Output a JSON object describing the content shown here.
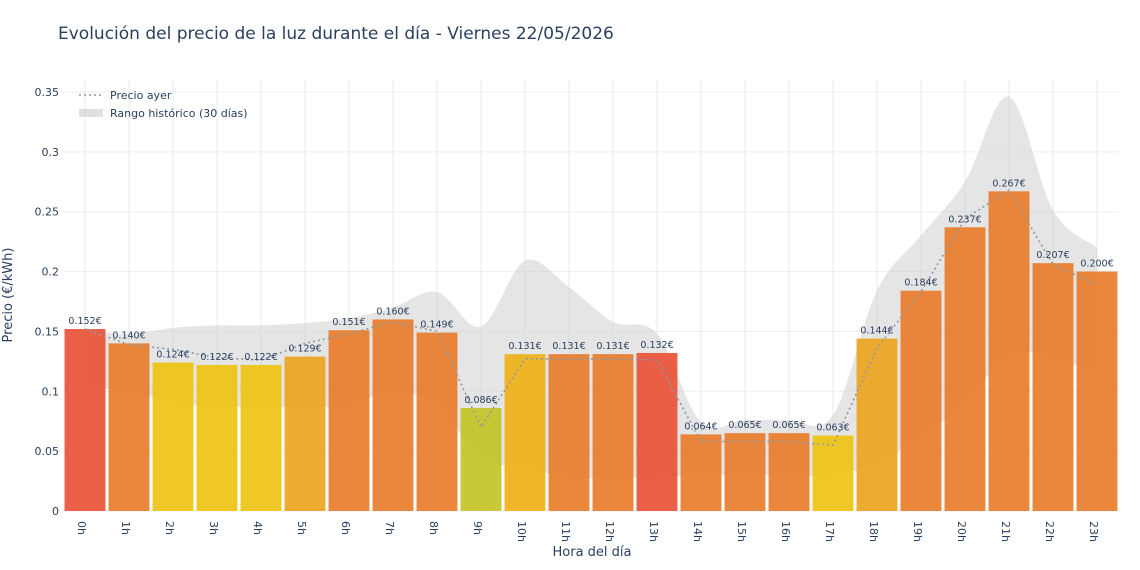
{
  "chart_data": {
    "type": "bar",
    "title": "Evolución del precio de la luz durante el día - Viernes 22/05/2026",
    "xlabel": "Hora del día",
    "ylabel": "Precio (€/kWh)",
    "ylim": [
      0,
      0.36
    ],
    "yticks": [
      0,
      0.05,
      0.1,
      0.15,
      0.2,
      0.25,
      0.3,
      0.35
    ],
    "ytick_labels": [
      "0",
      "0.05",
      "0.1",
      "0.15",
      "0.2",
      "0.25",
      "0.3",
      "0.35"
    ],
    "grid": true,
    "legend_position": "top-left",
    "categories": [
      "0h",
      "1h",
      "2h",
      "3h",
      "4h",
      "5h",
      "6h",
      "7h",
      "8h",
      "9h",
      "10h",
      "11h",
      "12h",
      "13h",
      "14h",
      "15h",
      "16h",
      "17h",
      "18h",
      "19h",
      "20h",
      "21h",
      "22h",
      "23h"
    ],
    "series": [
      {
        "values": [
          0.152,
          0.14,
          0.124,
          0.122,
          0.122,
          0.129,
          0.151,
          0.16,
          0.149,
          0.086,
          0.131,
          0.131,
          0.131,
          0.132,
          0.064,
          0.065,
          0.065,
          0.063,
          0.144,
          0.184,
          0.237,
          0.267,
          0.207,
          0.2
        ],
        "labels": [
          "0.152€",
          "0.140€",
          "0.124€",
          "0.122€",
          "0.122€",
          "0.129€",
          "0.151€",
          "0.160€",
          "0.149€",
          "0.086€",
          "0.131€",
          "0.131€",
          "0.131€",
          "0.132€",
          "0.064€",
          "0.065€",
          "0.065€",
          "0.063€",
          "0.144€",
          "0.184€",
          "0.237€",
          "0.267€",
          "0.207€",
          "0.200€"
        ],
        "colors": [
          "#e8553a",
          "#ea7e2d",
          "#efc414",
          "#efc414",
          "#efc414",
          "#eda521",
          "#ea7e2d",
          "#ea7e2d",
          "#ea7e2d",
          "#c5c42a",
          "#efb21b",
          "#ea7e2d",
          "#ea7e2d",
          "#e8553a",
          "#ea7e2d",
          "#ea7e2d",
          "#ea7e2d",
          "#efc414",
          "#eda521",
          "#ea7e2d",
          "#ea7e2d",
          "#ea7e2d",
          "#ea7e2d",
          "#ea7e2d"
        ]
      },
      {
        "name": "Precio ayer",
        "type": "line",
        "style": "dotted",
        "color": "#8a9aa4",
        "values": [
          0.152,
          0.139,
          0.135,
          0.128,
          0.126,
          0.14,
          0.148,
          0.158,
          0.15,
          0.07,
          0.127,
          0.127,
          0.127,
          0.126,
          0.058,
          0.058,
          0.058,
          0.055,
          0.136,
          0.183,
          0.244,
          0.268,
          0.206,
          0.189
        ]
      },
      {
        "name": "Rango histórico (30 días)",
        "type": "area-band",
        "color": "#cccccc",
        "upper": [
          0.151,
          0.148,
          0.153,
          0.155,
          0.155,
          0.157,
          0.161,
          0.17,
          0.183,
          0.154,
          0.209,
          0.187,
          0.158,
          0.148,
          0.074,
          0.076,
          0.076,
          0.08,
          0.184,
          0.23,
          0.275,
          0.346,
          0.251,
          0.22
        ],
        "lower": [
          0.103,
          0.1,
          0.091,
          0.087,
          0.087,
          0.087,
          0.088,
          0.1,
          0.088,
          0.045,
          0.036,
          0.028,
          0.028,
          0.028,
          0.03,
          0.03,
          0.03,
          0.03,
          0.04,
          0.063,
          0.09,
          0.131,
          0.128,
          0.115
        ]
      }
    ]
  }
}
